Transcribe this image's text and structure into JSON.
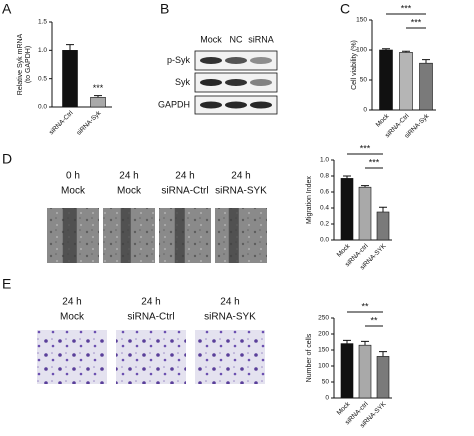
{
  "chart_data": [
    {
      "type": "bar",
      "ylabel": [
        "Relative Syk mRNA",
        "(to GAPDH)"
      ],
      "categories": [
        "siRNA-Ctrl",
        "siRNA-Syk"
      ],
      "values": [
        1.0,
        0.17
      ],
      "errors": [
        0.1,
        0.03
      ],
      "colors": [
        "#111111",
        "#a9a9a9"
      ],
      "ylim": [
        0,
        1.5
      ],
      "yticks": [
        {
          "value": 0,
          "label": "0.0"
        },
        {
          "value": 0.5,
          "label": "0.5"
        },
        {
          "value": 1,
          "label": "1.0"
        },
        {
          "value": 1.5,
          "label": "1.5"
        }
      ],
      "annotations": [
        {
          "text": "***",
          "over": "siRNA-Syk"
        }
      ]
    },
    {
      "type": "bar",
      "ylabel": [
        "Cell viability (%)"
      ],
      "categories": [
        "Mock",
        "siRNA-Ctrl",
        "siRNA-Syk"
      ],
      "values": [
        100,
        96,
        78
      ],
      "errors": [
        2,
        2,
        6
      ],
      "colors": [
        "#111111",
        "#b5b5b5",
        "#7a7a7a"
      ],
      "ylim": [
        0,
        150
      ],
      "yticks": [
        0,
        50,
        100,
        150
      ],
      "annotations": [
        {
          "text": "***",
          "between": [
            "Mock",
            "siRNA-Syk"
          ]
        },
        {
          "text": "***",
          "between": [
            "siRNA-Ctrl",
            "siRNA-Syk"
          ]
        }
      ]
    },
    {
      "type": "bar",
      "ylabel": [
        "Migration Index"
      ],
      "categories": [
        "Mock",
        "siRNA-ctrl",
        "siRNA-SYK"
      ],
      "values": [
        0.77,
        0.66,
        0.35
      ],
      "errors": [
        0.03,
        0.02,
        0.06
      ],
      "colors": [
        "#111111",
        "#a9a9a9",
        "#7a7a7a"
      ],
      "ylim": [
        0,
        1.0
      ],
      "yticks": [
        {
          "value": 0,
          "label": "0.0"
        },
        0.2,
        0.4,
        0.6,
        0.8,
        {
          "value": 1,
          "label": "1.0"
        }
      ],
      "annotations": [
        {
          "text": "***",
          "between": [
            "Mock",
            "siRNA-SYK"
          ]
        },
        {
          "text": "***",
          "between": [
            "siRNA-ctrl",
            "siRNA-SYK"
          ]
        }
      ]
    },
    {
      "type": "bar",
      "ylabel": [
        "Number of cells"
      ],
      "categories": [
        "Mock",
        "siRNA-ctrl",
        "siRNA-SYK"
      ],
      "values": [
        170,
        165,
        130
      ],
      "errors": [
        10,
        12,
        15
      ],
      "colors": [
        "#111111",
        "#a9a9a9",
        "#7a7a7a"
      ],
      "ylim": [
        0,
        250
      ],
      "yticks": [
        0,
        50,
        100,
        150,
        200,
        250
      ],
      "annotations": [
        {
          "text": "**",
          "between": [
            "Mock",
            "siRNA-SYK"
          ]
        },
        {
          "text": "**",
          "between": [
            "siRNA-ctrl",
            "siRNA-SYK"
          ]
        }
      ]
    }
  ],
  "panels": {
    "letters": [
      "A",
      "B",
      "C",
      "D",
      "E"
    ],
    "blot": {
      "lanes": [
        "Mock",
        "NC",
        "siRNA"
      ],
      "rows": [
        "p-Syk",
        "Syk",
        "GAPDH"
      ]
    },
    "migration_images": [
      [
        "0 h",
        "Mock"
      ],
      [
        "24 h",
        "Mock"
      ],
      [
        "24 h",
        "siRNA-Ctrl"
      ],
      [
        "24 h",
        "siRNA-SYK"
      ]
    ],
    "invasion_images": [
      [
        "24 h",
        "Mock"
      ],
      [
        "24 h",
        "siRNA-Ctrl"
      ],
      [
        "24 h",
        "siRNA-SYK"
      ]
    ]
  }
}
